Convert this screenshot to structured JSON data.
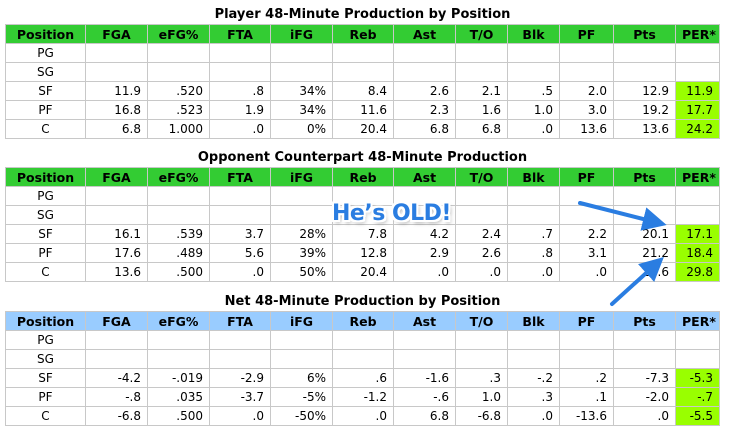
{
  "columns": [
    "Position",
    "FGA",
    "eFG%",
    "FTA",
    "iFG",
    "Reb",
    "Ast",
    "T/O",
    "Blk",
    "PF",
    "Pts",
    "PER*"
  ],
  "tables": [
    {
      "title": "Player 48-Minute Production by Position",
      "header_color": "#33cc33",
      "rows": [
        [
          "PG",
          "",
          "",
          "",
          "",
          "",
          "",
          "",
          "",
          "",
          "",
          ""
        ],
        [
          "SG",
          "",
          "",
          "",
          "",
          "",
          "",
          "",
          "",
          "",
          "",
          ""
        ],
        [
          "SF",
          "11.9",
          ".520",
          ".8",
          "34%",
          "8.4",
          "2.6",
          "2.1",
          ".5",
          "2.0",
          "12.9",
          "11.9"
        ],
        [
          "PF",
          "16.8",
          ".523",
          "1.9",
          "34%",
          "11.6",
          "2.3",
          "1.6",
          "1.0",
          "3.0",
          "19.2",
          "17.7"
        ],
        [
          "C",
          "6.8",
          "1.000",
          ".0",
          "0%",
          "20.4",
          "6.8",
          "6.8",
          ".0",
          "13.6",
          "13.6",
          "24.2"
        ]
      ]
    },
    {
      "title": "Opponent Counterpart 48-Minute Production",
      "header_color": "#33cc33",
      "rows": [
        [
          "PG",
          "",
          "",
          "",
          "",
          "",
          "",
          "",
          "",
          "",
          "",
          ""
        ],
        [
          "SG",
          "",
          "",
          "",
          "",
          "",
          "",
          "",
          "",
          "",
          "",
          ""
        ],
        [
          "SF",
          "16.1",
          ".539",
          "3.7",
          "28%",
          "7.8",
          "4.2",
          "2.4",
          ".7",
          "2.2",
          "20.1",
          "17.1"
        ],
        [
          "PF",
          "17.6",
          ".489",
          "5.6",
          "39%",
          "12.8",
          "2.9",
          "2.6",
          ".8",
          "3.1",
          "21.2",
          "18.4"
        ],
        [
          "C",
          "13.6",
          ".500",
          ".0",
          "50%",
          "20.4",
          ".0",
          ".0",
          ".0",
          ".0",
          "13.6",
          "29.8"
        ]
      ]
    },
    {
      "title": "Net 48-Minute Production by Position",
      "header_color": "#99ccff",
      "rows": [
        [
          "PG",
          "",
          "",
          "",
          "",
          "",
          "",
          "",
          "",
          "",
          "",
          ""
        ],
        [
          "SG",
          "",
          "",
          "",
          "",
          "",
          "",
          "",
          "",
          "",
          "",
          ""
        ],
        [
          "SF",
          "-4.2",
          "-.019",
          "-2.9",
          "6%",
          ".6",
          "-1.6",
          ".3",
          "-.2",
          ".2",
          "-7.3",
          "-5.3"
        ],
        [
          "PF",
          "-.8",
          ".035",
          "-3.7",
          "-5%",
          "-1.2",
          "-.6",
          "1.0",
          ".3",
          ".1",
          "-2.0",
          "-.7"
        ],
        [
          "C",
          "-6.8",
          ".500",
          ".0",
          "-50%",
          ".0",
          "6.8",
          "-6.8",
          ".0",
          "-13.6",
          ".0",
          "-5.5"
        ]
      ]
    }
  ],
  "annotation": {
    "text": "He’s OLD!",
    "color": "#2a7de1"
  },
  "highlight_color": "#99ff00"
}
